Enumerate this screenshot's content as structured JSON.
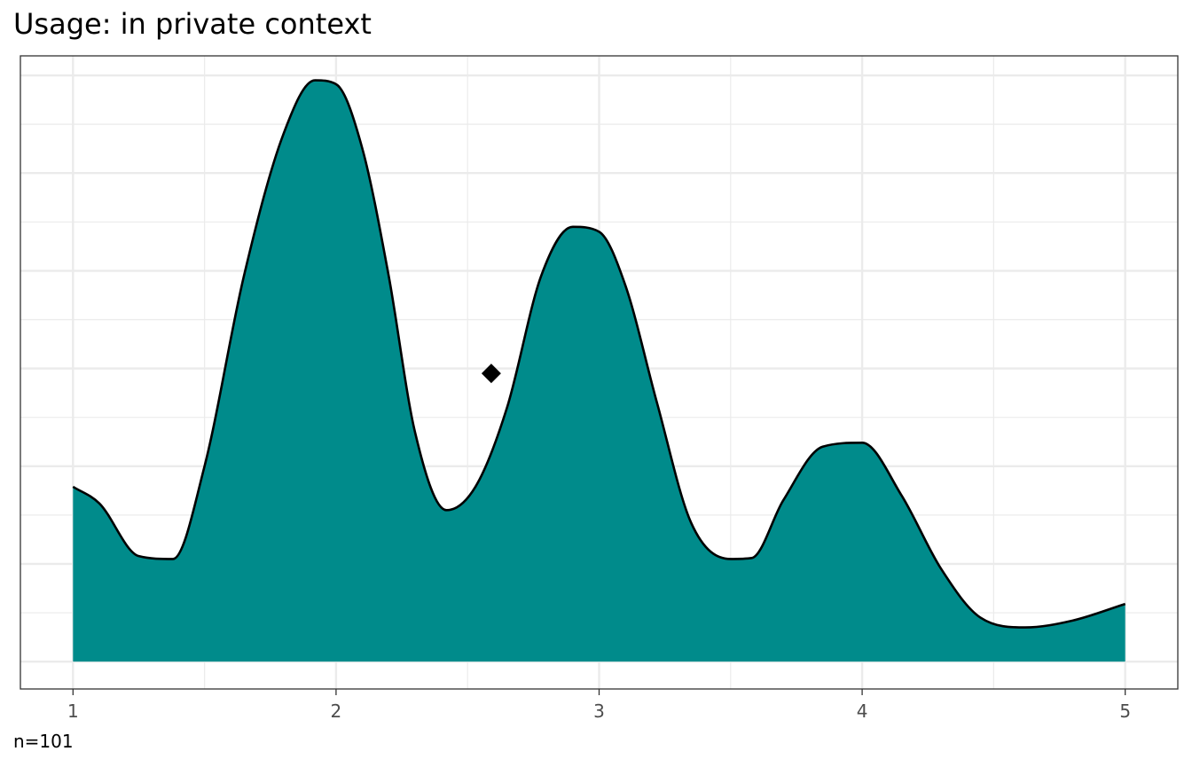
{
  "chart_data": {
    "type": "area",
    "title": "Usage: in private context",
    "xlabel": "",
    "ylabel": "",
    "caption": "n=101",
    "xlim": [
      0.8,
      5.2
    ],
    "ylim": [
      -0.28,
      6.2
    ],
    "x_ticks": [
      1,
      2,
      3,
      4,
      5
    ],
    "x_tick_labels": [
      "1",
      "2",
      "3",
      "4",
      "5"
    ],
    "y_ticks_major": [
      0,
      1,
      2,
      3,
      4,
      5,
      6
    ],
    "y_ticks_shown": false,
    "grid": true,
    "theme": "bw",
    "fill_color": "#008b8b",
    "line_color": "#000000",
    "density": {
      "x": [
        1.0,
        1.1,
        1.25,
        1.38,
        1.5,
        1.65,
        1.8,
        1.92,
        2.0,
        2.1,
        2.2,
        2.3,
        2.42,
        2.53,
        2.65,
        2.78,
        2.9,
        3.0,
        3.1,
        3.22,
        3.35,
        3.5,
        3.58,
        3.7,
        3.85,
        4.0,
        4.15,
        4.3,
        4.45,
        4.62,
        4.8,
        5.0
      ],
      "y": [
        1.79,
        1.62,
        1.08,
        1.05,
        2.0,
        3.95,
        5.4,
        5.95,
        5.91,
        5.25,
        3.95,
        2.35,
        1.55,
        1.79,
        2.6,
        3.95,
        4.45,
        4.4,
        3.85,
        2.65,
        1.42,
        1.05,
        1.06,
        1.65,
        2.2,
        2.24,
        1.7,
        0.95,
        0.45,
        0.35,
        0.42,
        0.59
      ]
    },
    "mean_marker": {
      "shape": "diamond",
      "x": 2.59,
      "y": 2.95,
      "color": "#000000"
    }
  }
}
